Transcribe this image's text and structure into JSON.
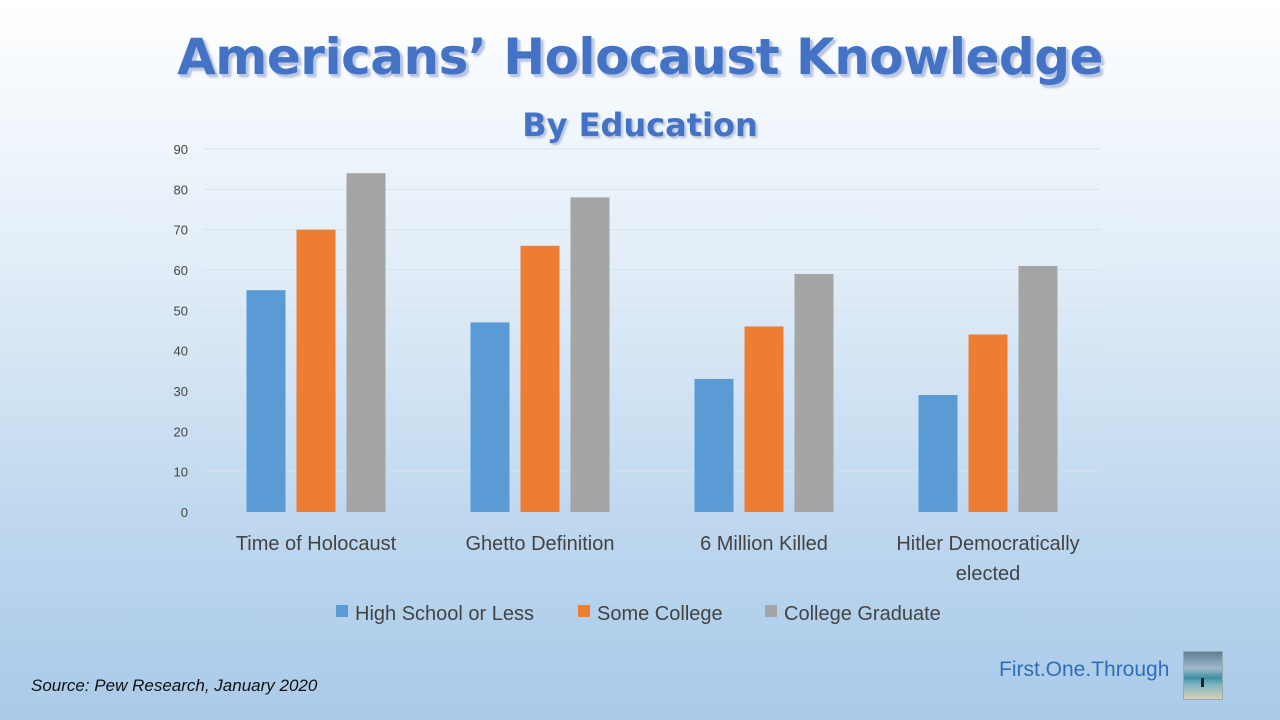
{
  "title": "Americans’ Holocaust Knowledge",
  "subtitle": "By Education",
  "source": "Source: Pew Research, January 2020",
  "brand": "First.One.Through",
  "chart_data": {
    "type": "bar",
    "categories": [
      [
        "Time of Holocaust"
      ],
      [
        "Ghetto Definition"
      ],
      [
        "6 Million Killed"
      ],
      [
        "Hitler Democratically",
        "elected"
      ]
    ],
    "series": [
      {
        "name": "High School or Less",
        "color": "#5b9bd5",
        "values": [
          55,
          47,
          33,
          29
        ]
      },
      {
        "name": "Some College",
        "color": "#ed7d31",
        "values": [
          70,
          66,
          46,
          44
        ]
      },
      {
        "name": "College Graduate",
        "color": "#a5a5a5",
        "values": [
          84,
          78,
          59,
          61
        ]
      }
    ],
    "ylim": [
      0,
      90
    ],
    "yticks": [
      0,
      10,
      20,
      30,
      40,
      50,
      60,
      70,
      80,
      90
    ],
    "grid": true,
    "legend": "bottom"
  }
}
